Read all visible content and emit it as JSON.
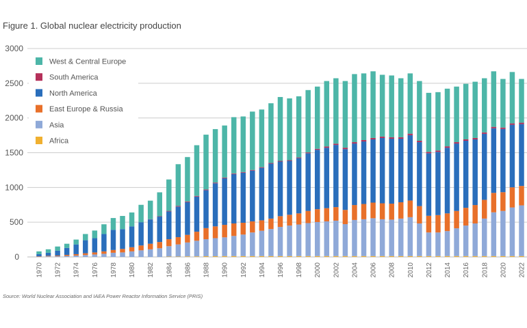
{
  "chart_data": {
    "type": "bar",
    "stacked": true,
    "title": "Figure 1. Global nuclear electricity production",
    "source": "Source: World Nuclear Association and IAEA Power Reactor Information Service (PRIS)",
    "xlabel": "",
    "ylabel": "",
    "ylim": [
      0,
      3000
    ],
    "yticks": [
      0,
      500,
      1000,
      1500,
      2000,
      2500,
      3000
    ],
    "grid": true,
    "legend_position": "top-left",
    "categories": [
      1970,
      1971,
      1972,
      1973,
      1974,
      1975,
      1976,
      1977,
      1978,
      1979,
      1980,
      1981,
      1982,
      1983,
      1984,
      1985,
      1986,
      1987,
      1988,
      1989,
      1990,
      1991,
      1992,
      1993,
      1994,
      1995,
      1996,
      1997,
      1998,
      1999,
      2000,
      2001,
      2002,
      2003,
      2004,
      2005,
      2006,
      2007,
      2008,
      2009,
      2010,
      2011,
      2012,
      2013,
      2014,
      2015,
      2016,
      2017,
      2018,
      2019,
      2020,
      2021,
      2022
    ],
    "xtick_labels": [
      "1970",
      "1972",
      "1974",
      "1976",
      "1978",
      "1980",
      "1982",
      "1984",
      "1986",
      "1988",
      "1990",
      "1992",
      "1994",
      "1996",
      "1998",
      "2000",
      "2002",
      "2004",
      "2006",
      "2008",
      "2010",
      "2012",
      "2014",
      "2016",
      "2018",
      "2020",
      "2022"
    ],
    "series": [
      {
        "name": "Africa",
        "color": "#f0b030",
        "values": [
          0,
          0,
          0,
          0,
          0,
          0,
          0,
          0,
          0,
          0,
          0,
          0,
          0,
          0,
          5,
          5,
          8,
          8,
          10,
          10,
          12,
          12,
          12,
          12,
          12,
          12,
          12,
          12,
          12,
          12,
          12,
          12,
          12,
          12,
          12,
          12,
          12,
          12,
          12,
          12,
          12,
          12,
          12,
          12,
          12,
          12,
          12,
          12,
          12,
          12,
          12,
          12,
          12
        ]
      },
      {
        "name": "Asia",
        "color": "#8fa9d8",
        "values": [
          5,
          8,
          10,
          15,
          20,
          28,
          35,
          45,
          60,
          65,
          80,
          95,
          110,
          125,
          150,
          175,
          200,
          225,
          245,
          260,
          270,
          290,
          310,
          340,
          365,
          390,
          420,
          440,
          455,
          475,
          490,
          500,
          510,
          460,
          520,
          530,
          545,
          530,
          525,
          540,
          560,
          470,
          340,
          340,
          360,
          400,
          440,
          470,
          540,
          630,
          650,
          700,
          730
        ]
      },
      {
        "name": "East Europe & Russia",
        "color": "#e8702a",
        "values": [
          5,
          8,
          10,
          15,
          20,
          25,
          30,
          35,
          40,
          50,
          60,
          70,
          80,
          90,
          100,
          105,
          110,
          130,
          160,
          170,
          180,
          180,
          170,
          160,
          150,
          150,
          155,
          155,
          160,
          175,
          185,
          190,
          195,
          205,
          215,
          220,
          225,
          230,
          230,
          235,
          240,
          250,
          240,
          250,
          255,
          250,
          255,
          265,
          270,
          280,
          270,
          290,
          280
        ]
      },
      {
        "name": "North America",
        "color": "#2a6ebb",
        "values": [
          30,
          44,
          70,
          100,
          140,
          187,
          205,
          250,
          290,
          285,
          300,
          335,
          350,
          365,
          400,
          440,
          470,
          505,
          545,
          620,
          670,
          710,
          720,
          730,
          755,
          790,
          785,
          775,
          795,
          830,
          855,
          870,
          895,
          875,
          885,
          900,
          910,
          940,
          935,
          915,
          940,
          920,
          900,
          910,
          945,
          970,
          965,
          945,
          950,
          930,
          910,
          900,
          890
        ]
      },
      {
        "name": "South America",
        "color": "#b5305a",
        "values": [
          0,
          0,
          0,
          0,
          0,
          0,
          0,
          0,
          0,
          0,
          0,
          0,
          3,
          5,
          8,
          10,
          10,
          10,
          10,
          10,
          10,
          10,
          10,
          10,
          10,
          10,
          10,
          10,
          10,
          12,
          14,
          18,
          18,
          20,
          20,
          20,
          20,
          20,
          20,
          20,
          22,
          20,
          20,
          20,
          20,
          20,
          20,
          20,
          20,
          20,
          20,
          20,
          20
        ]
      },
      {
        "name": "West & Central Europe",
        "color": "#4db6a8",
        "values": [
          40,
          50,
          60,
          60,
          70,
          90,
          110,
          140,
          170,
          190,
          200,
          250,
          267,
          345,
          452,
          600,
          640,
          730,
          790,
          770,
          750,
          810,
          800,
          840,
          830,
          860,
          920,
          890,
          880,
          898,
          896,
          942,
          942,
          960,
          980,
          960,
          960,
          890,
          890,
          850,
          868,
          860,
          850,
          840,
          830,
          800,
          800,
          810,
          780,
          800,
          700,
          740,
          630
        ]
      }
    ],
    "legend_order": [
      "West & Central Europe",
      "South America",
      "North America",
      "East Europe & Russia",
      "Asia",
      "Africa"
    ]
  }
}
